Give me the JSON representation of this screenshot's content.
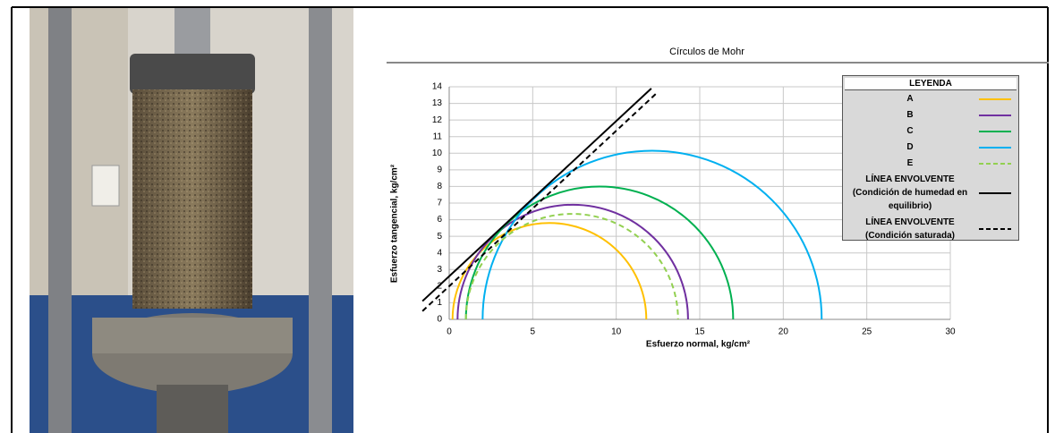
{
  "chart_data": {
    "type": "mohr",
    "title": "Círculos de Mohr",
    "x_label": "Esfuerzo normal, kg/cm²",
    "y_label": "Esfuerzo tangencial, kg/cm²",
    "legend_title": "LEYENDA",
    "xlim": [
      0,
      30
    ],
    "ylim": [
      0,
      14
    ],
    "xticks": [
      0,
      5,
      10,
      15,
      20,
      25,
      30
    ],
    "yticks": [
      0,
      1,
      2,
      3,
      4,
      5,
      6,
      7,
      8,
      9,
      10,
      11,
      12,
      13,
      14
    ],
    "grid": true,
    "circles": [
      {
        "name": "A",
        "color": "#ffc000",
        "dashed": false,
        "sigma3": 0.2,
        "sigma1": 11.8
      },
      {
        "name": "B",
        "color": "#7030a0",
        "dashed": false,
        "sigma3": 0.5,
        "sigma1": 14.3
      },
      {
        "name": "C",
        "color": "#00b050",
        "dashed": false,
        "sigma3": 1.0,
        "sigma1": 17.0
      },
      {
        "name": "D",
        "color": "#00b0f0",
        "dashed": false,
        "sigma3": 2.0,
        "sigma1": 22.3
      },
      {
        "name": "E",
        "color": "#92d050",
        "dashed": true,
        "sigma3": 1.0,
        "sigma1": 13.7
      }
    ],
    "envelopes": [
      {
        "name": "LÍNEA ENVOLVENTE (Condición de humedad en equilibrio)",
        "color": "#000000",
        "dashed": false,
        "x": [
          -1.6,
          12.1
        ],
        "y": [
          1.1,
          13.9
        ]
      },
      {
        "name": "LÍNEA ENVOLVENTE (Condición saturada)",
        "color": "#000000",
        "dashed": true,
        "x": [
          -1.6,
          12.4
        ],
        "y": [
          0.5,
          13.6
        ]
      }
    ]
  }
}
